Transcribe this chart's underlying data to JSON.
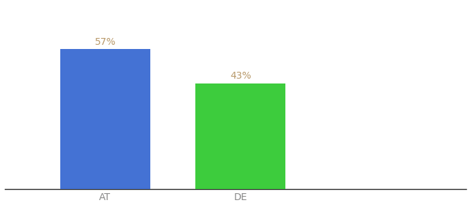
{
  "categories": [
    "AT",
    "DE"
  ],
  "values": [
    57,
    43
  ],
  "bar_colors": [
    "#4472d4",
    "#3dcc3d"
  ],
  "label_texts": [
    "57%",
    "43%"
  ],
  "label_color": "#b8996a",
  "background_color": "#ffffff",
  "ylim": [
    0,
    75
  ],
  "bar_width": 0.18,
  "x_positions": [
    0.28,
    0.55
  ],
  "xlim": [
    0.08,
    1.0
  ],
  "tick_fontsize": 10,
  "label_fontsize": 10,
  "bottom_spine_color": "#222222",
  "bottom_spine_linewidth": 1.0,
  "xtick_color": "#888888"
}
